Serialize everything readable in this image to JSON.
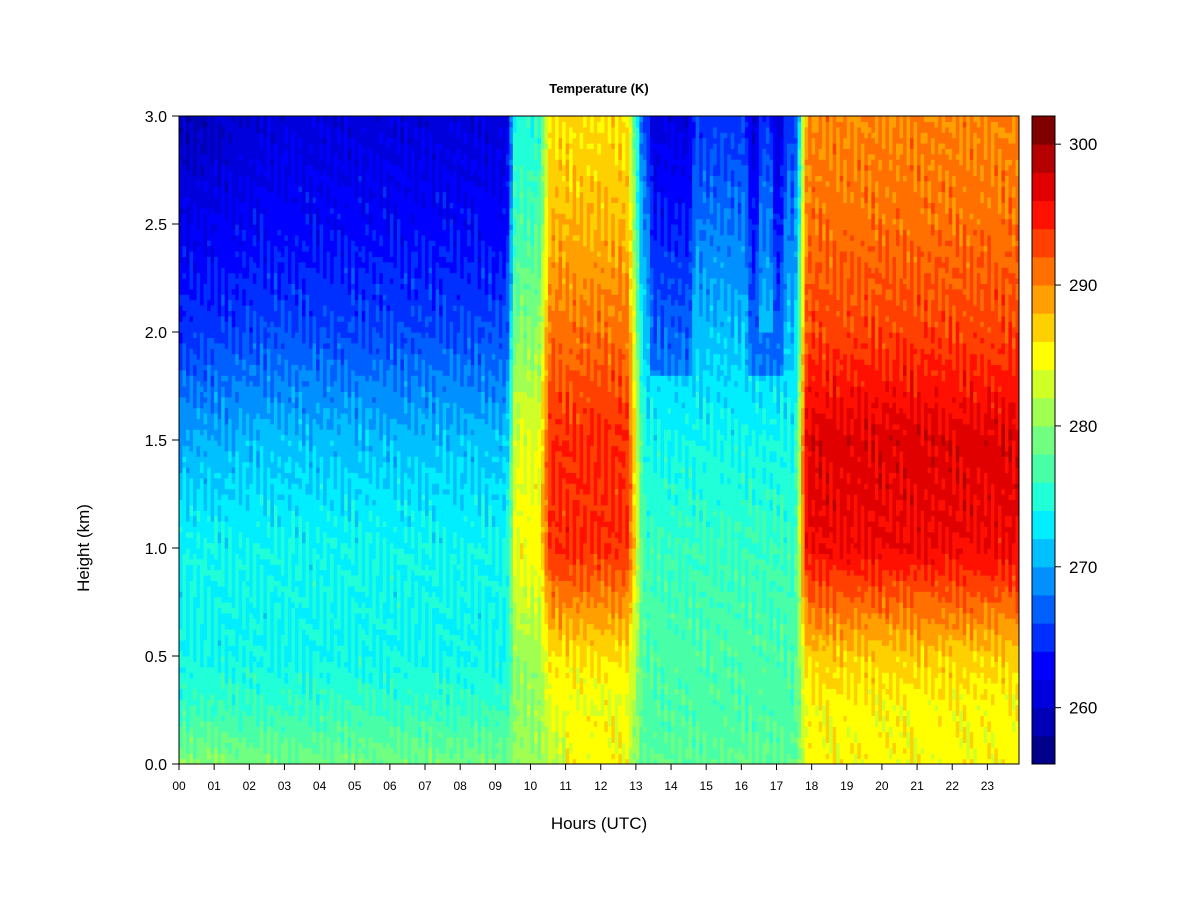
{
  "chart_data": {
    "type": "heatmap",
    "title": "Temperature (K)",
    "xlabel": "Hours (UTC)",
    "ylabel": "Height (km)",
    "x_tick_labels": [
      "00",
      "01",
      "02",
      "03",
      "04",
      "05",
      "06",
      "07",
      "08",
      "09",
      "10",
      "11",
      "12",
      "13",
      "14",
      "15",
      "16",
      "17",
      "18",
      "19",
      "20",
      "21",
      "22",
      "23"
    ],
    "y_ticks": [
      0.0,
      0.5,
      1.0,
      1.5,
      2.0,
      2.5,
      3.0
    ],
    "y_tick_labels": [
      "0.0",
      "0.5",
      "1.0",
      "1.5",
      "2.0",
      "2.5",
      "3.0"
    ],
    "xlim": [
      0,
      23.9
    ],
    "ylim": [
      0,
      3.0
    ],
    "colorbar": {
      "ticks": [
        260,
        270,
        280,
        290,
        300
      ],
      "tick_labels": [
        "260",
        "270",
        "280",
        "290",
        "300"
      ],
      "range": [
        256,
        302
      ],
      "levels": [
        256,
        258,
        260,
        262,
        264,
        266,
        268,
        270,
        272,
        274,
        276,
        278,
        280,
        282,
        284,
        286,
        288,
        290,
        292,
        294,
        296,
        298,
        300,
        302
      ],
      "colors": [
        "#00008B",
        "#0000B4",
        "#0000DC",
        "#0000FF",
        "#0030FF",
        "#0060FF",
        "#0090FF",
        "#00C0FF",
        "#00EEFF",
        "#20FFD8",
        "#48FFA8",
        "#70FF80",
        "#A0FF50",
        "#D0FF28",
        "#FFFF00",
        "#FFD000",
        "#FFA000",
        "#FF7000",
        "#FF4000",
        "#FF1000",
        "#E00000",
        "#B40000",
        "#800000"
      ]
    },
    "time_hours": [
      0,
      0.5,
      1,
      1.5,
      2,
      2.5,
      3,
      3.5,
      4,
      4.5,
      5,
      5.5,
      6,
      6.5,
      7,
      7.5,
      8,
      8.5,
      9,
      9.3,
      9.5,
      9.8,
      10,
      10.3,
      10.5,
      10.8,
      11,
      11.5,
      12,
      12.5,
      12.8,
      13,
      13.3,
      13.5,
      14,
      14.5,
      15,
      15.5,
      16,
      16.2,
      16.5,
      16.8,
      17,
      17.3,
      17.5,
      17.7,
      18,
      18.5,
      19,
      19.5,
      20,
      20.5,
      21,
      21.5,
      22,
      22.3,
      22.5,
      23,
      23.5,
      23.9
    ],
    "temperature_profiles": {
      "heights_km": [
        0.0,
        0.25,
        0.5,
        1.0,
        1.5,
        2.0,
        2.5,
        3.0
      ],
      "night_early_00_02": [
        280,
        276,
        274,
        274,
        270,
        265,
        262,
        259
      ],
      "night_03_09": [
        279,
        276,
        274,
        274,
        271,
        266,
        263,
        261
      ],
      "day_11_12": [
        282,
        284,
        286,
        294,
        294,
        291,
        288,
        286
      ],
      "midday_14_17": [
        278,
        277,
        277,
        276,
        274,
        271,
        268,
        265
      ],
      "evening_18_23": [
        284,
        285,
        287,
        296,
        297,
        293,
        291,
        290
      ]
    }
  }
}
